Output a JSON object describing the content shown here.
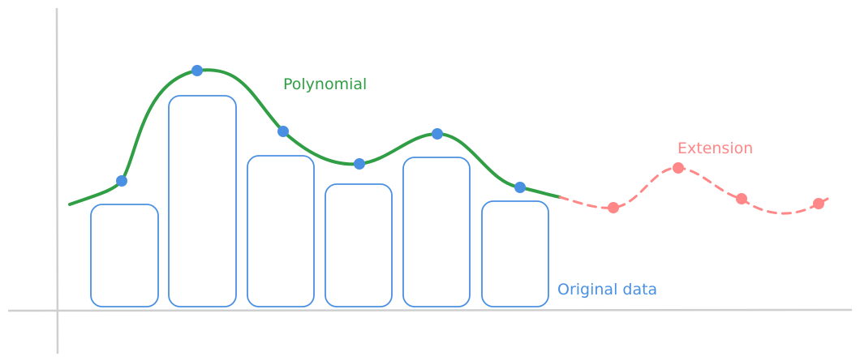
{
  "labels": {
    "polynomial": "Polynomial",
    "extension": "Extension",
    "original_data": "Original data"
  },
  "colors": {
    "axis": "#cfcfcf",
    "bars": "#4a90e2",
    "points": "#4a90e2",
    "polynomial": "#2f9e44",
    "extension": "#ff8787"
  }
}
